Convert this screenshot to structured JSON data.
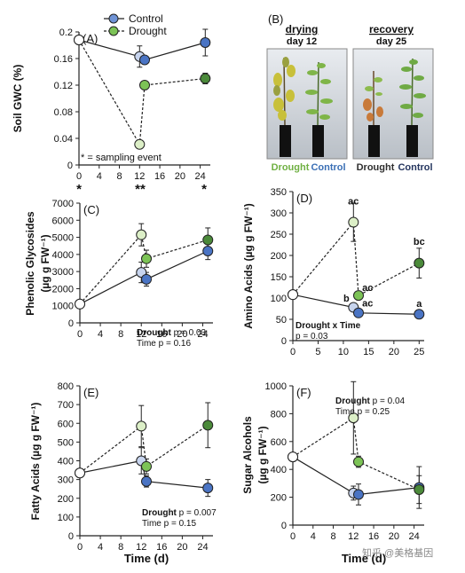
{
  "figure": {
    "watermark": "知乎 @美格基因",
    "shared_xlabel": "Time (d)",
    "significance_note": "* = sampling event",
    "significance_marks": [
      "*",
      "**",
      "*"
    ],
    "photo_panel": {
      "label": "(B)",
      "left": {
        "title": "drying",
        "subtitle": "day 12"
      },
      "right": {
        "title": "recovery",
        "subtitle": "day 25"
      },
      "bottom_labels": [
        {
          "text": "Drought",
          "color": "#6fb042"
        },
        {
          "text": "Control",
          "color": "#3a6fb5"
        },
        {
          "text": "Drought",
          "color": "#2e2e2e"
        },
        {
          "text": "Control",
          "color": "#25365f"
        }
      ]
    }
  },
  "colors": {
    "control_early": "#c7d4ee",
    "control_late": "#4a74c4",
    "drought_early": "#dcefc7",
    "drought_mid": "#7cc356",
    "drought_late": "#4b8a3a",
    "day0": "#ffffff",
    "stroke": "#222222"
  },
  "chart_data": [
    {
      "type": "line",
      "panel": "(A)",
      "title": "",
      "ylabel": "Soil GWC (%)",
      "xlabel": "",
      "xlim": [
        0,
        26
      ],
      "ylim": [
        0,
        0.2
      ],
      "xticks": [
        0,
        4,
        8,
        12,
        16,
        20,
        24
      ],
      "yticks": [
        0,
        0.04,
        0.08,
        0.12,
        0.16,
        0.2
      ],
      "ytick_labels": [
        "0",
        "0.04",
        "0.08",
        "0.12",
        "0.16",
        "0.2"
      ],
      "legend": {
        "placement": "top-center",
        "entries": [
          "Control",
          "Drought"
        ]
      },
      "annotations": [],
      "series": [
        {
          "name": "Control",
          "style": "solid",
          "x": [
            0,
            12,
            13,
            25
          ],
          "y": [
            0.188,
            0.163,
            0.158,
            0.184
          ],
          "err": [
            0,
            0.016,
            0,
            0.02
          ]
        },
        {
          "name": "Drought",
          "style": "dashed",
          "x": [
            0,
            12,
            13,
            25
          ],
          "y": [
            0.188,
            0.031,
            0.12,
            0.13
          ],
          "err": [
            0,
            0,
            0,
            0.008
          ]
        }
      ]
    },
    {
      "type": "line",
      "panel": "(C)",
      "title": "",
      "ylabel": "Phenolic Glycosides",
      "ylabel2": "(µg g FW⁻¹)",
      "xlabel": "",
      "xlim": [
        0,
        26
      ],
      "ylim": [
        0,
        7000
      ],
      "xticks": [
        0,
        4,
        8,
        12,
        16,
        20,
        24
      ],
      "yticks": [
        0,
        1000,
        2000,
        3000,
        4000,
        5000,
        6000,
        7000
      ],
      "ytick_labels": [
        "0",
        "1000",
        "2000",
        "3000",
        "4000",
        "5000",
        "6000",
        "7000"
      ],
      "annotations": [
        {
          "text": "Drought p = 0.03",
          "bold": "Drought"
        },
        {
          "text": "Time p = 0.16",
          "bold": ""
        }
      ],
      "series": [
        {
          "name": "Control",
          "style": "solid",
          "x": [
            0,
            12,
            13,
            25
          ],
          "y": [
            1100,
            2950,
            2550,
            4200
          ],
          "err": [
            0,
            600,
            400,
            500
          ]
        },
        {
          "name": "Drought",
          "style": "dashed",
          "x": [
            0,
            12,
            13,
            25
          ],
          "y": [
            1100,
            5150,
            3750,
            4850
          ],
          "err": [
            0,
            650,
            500,
            700
          ]
        }
      ]
    },
    {
      "type": "line",
      "panel": "(D)",
      "title": "",
      "ylabel": "Amino Acids (µg g FW⁻¹)",
      "xlabel": "",
      "xlim": [
        0,
        26
      ],
      "ylim": [
        0,
        350
      ],
      "xticks": [
        0,
        5,
        10,
        15,
        20,
        25
      ],
      "yticks": [
        0,
        50,
        100,
        150,
        200,
        250,
        300,
        350
      ],
      "ytick_labels": [
        "0",
        "50",
        "100",
        "150",
        "200",
        "250",
        "300",
        "350"
      ],
      "annotations": [
        {
          "text": "Drought x Time",
          "bold": "Drought x Time"
        },
        {
          "text": "p = 0.03",
          "bold": ""
        }
      ],
      "point_labels": [
        {
          "text": "ac",
          "x": 12,
          "y": 320
        },
        {
          "text": "ac",
          "x": 14.8,
          "y": 117
        },
        {
          "text": "b",
          "x": 10.6,
          "y": 92
        },
        {
          "text": "ac",
          "x": 14.8,
          "y": 80
        },
        {
          "text": "bc",
          "x": 25,
          "y": 225
        },
        {
          "text": "a",
          "x": 25,
          "y": 79
        }
      ],
      "series": [
        {
          "name": "Control",
          "style": "solid",
          "x": [
            0,
            12,
            13,
            25
          ],
          "y": [
            108,
            78,
            65,
            62
          ],
          "err": [
            0,
            0,
            0,
            5
          ]
        },
        {
          "name": "Drought",
          "style": "dashed",
          "x": [
            0,
            12,
            13,
            25
          ],
          "y": [
            108,
            278,
            106,
            182
          ],
          "err": [
            0,
            45,
            0,
            35
          ]
        }
      ]
    },
    {
      "type": "line",
      "panel": "(E)",
      "title": "",
      "ylabel": "Fatty Acids (µg g FW⁻¹)",
      "xlabel": "Time (d)",
      "xlim": [
        0,
        26
      ],
      "ylim": [
        0,
        800
      ],
      "xticks": [
        0,
        4,
        8,
        12,
        16,
        20,
        24
      ],
      "yticks": [
        0,
        100,
        200,
        300,
        400,
        500,
        600,
        700,
        800
      ],
      "ytick_labels": [
        "0",
        "100",
        "200",
        "300",
        "400",
        "500",
        "600",
        "700",
        "800"
      ],
      "annotations": [
        {
          "text": "Drought p = 0.007",
          "bold": "Drought"
        },
        {
          "text": "Time p = 0.15",
          "bold": ""
        }
      ],
      "series": [
        {
          "name": "Control",
          "style": "solid",
          "x": [
            0,
            12,
            13,
            25
          ],
          "y": [
            335,
            400,
            290,
            255
          ],
          "err": [
            0,
            70,
            30,
            45
          ]
        },
        {
          "name": "Drought",
          "style": "dashed",
          "x": [
            0,
            12,
            13,
            25
          ],
          "y": [
            335,
            585,
            370,
            590
          ],
          "err": [
            0,
            110,
            40,
            120
          ]
        }
      ]
    },
    {
      "type": "line",
      "panel": "(F)",
      "title": "",
      "ylabel": "Sugar Alcohols",
      "ylabel2": "(µg g FW⁻¹)",
      "xlabel": "Time (d)",
      "xlim": [
        0,
        26
      ],
      "ylim": [
        0,
        1000
      ],
      "xticks": [
        0,
        4,
        8,
        12,
        16,
        20,
        24
      ],
      "yticks": [
        0,
        200,
        400,
        600,
        800,
        1000
      ],
      "ytick_labels": [
        "0",
        "200",
        "400",
        "600",
        "800",
        "1000"
      ],
      "annotations": [
        {
          "text": "Drought p = 0.04",
          "bold": "Drought"
        },
        {
          "text": "Time p = 0.25",
          "bold": ""
        }
      ],
      "series": [
        {
          "name": "Control",
          "style": "solid",
          "x": [
            0,
            12,
            13,
            25
          ],
          "y": [
            490,
            230,
            220,
            270
          ],
          "err": [
            0,
            50,
            75,
            150
          ]
        },
        {
          "name": "Drought",
          "style": "dashed",
          "x": [
            0,
            12,
            13,
            25
          ],
          "y": [
            490,
            770,
            455,
            255
          ],
          "err": [
            0,
            260,
            40,
            100
          ]
        }
      ]
    }
  ]
}
